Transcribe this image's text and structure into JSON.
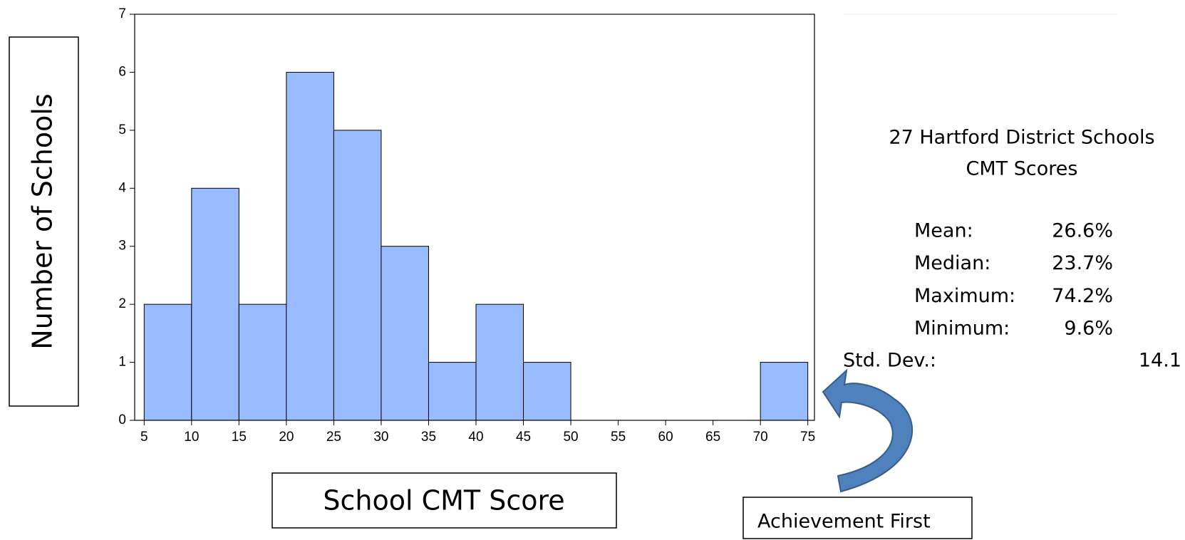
{
  "chart_data": {
    "type": "histogram",
    "x_label": "School CMT Score",
    "y_label": "Number of Schools",
    "bins": [
      5,
      10,
      15,
      20,
      25,
      30,
      35,
      40,
      45,
      50,
      55,
      60,
      65,
      70,
      75
    ],
    "counts": [
      2,
      4,
      2,
      6,
      5,
      3,
      1,
      2,
      1,
      0,
      0,
      0,
      0,
      1
    ],
    "color": "#99bbff",
    "xlim": [
      4,
      75.7
    ],
    "ylim": [
      0,
      7
    ],
    "xticks": [
      5,
      10,
      15,
      20,
      25,
      30,
      35,
      40,
      45,
      50,
      55,
      60,
      65,
      70,
      75
    ],
    "yticks": [
      0,
      1,
      2,
      3,
      4,
      5,
      6,
      7
    ],
    "stats_title": [
      "27 Hartford District Schools",
      "CMT Scores"
    ],
    "stats": [
      {
        "label": "Mean:",
        "value": "26.6%"
      },
      {
        "label": "Median:",
        "value": "23.7%"
      },
      {
        "label": "Maximum:",
        "value": "74.2%"
      },
      {
        "label": "Minimum:",
        "value": "9.6%"
      }
    ],
    "std_dev": {
      "label": "Std. Dev.:",
      "value": "14.1"
    },
    "annotation": "Achievement First"
  }
}
